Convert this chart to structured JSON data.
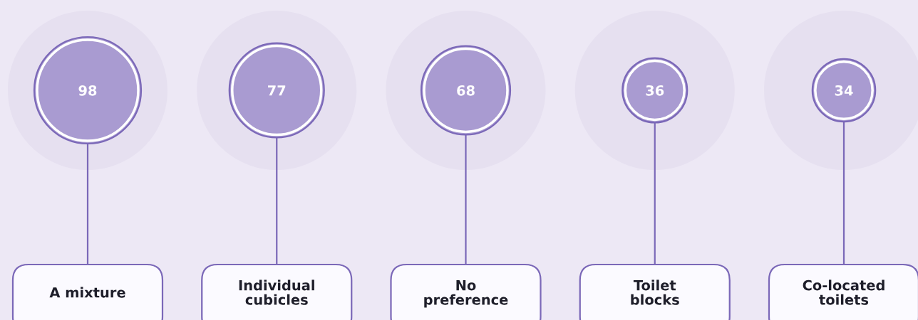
{
  "chart_data": {
    "type": "other",
    "categories": [
      "A mixture",
      "Individual\ncubicles",
      "No\npreference",
      "Toilet\nblocks",
      "Co-located\ntoilets"
    ],
    "values": [
      98,
      77,
      68,
      36,
      34
    ],
    "color": "#a99bd1",
    "data_labels": true
  }
}
